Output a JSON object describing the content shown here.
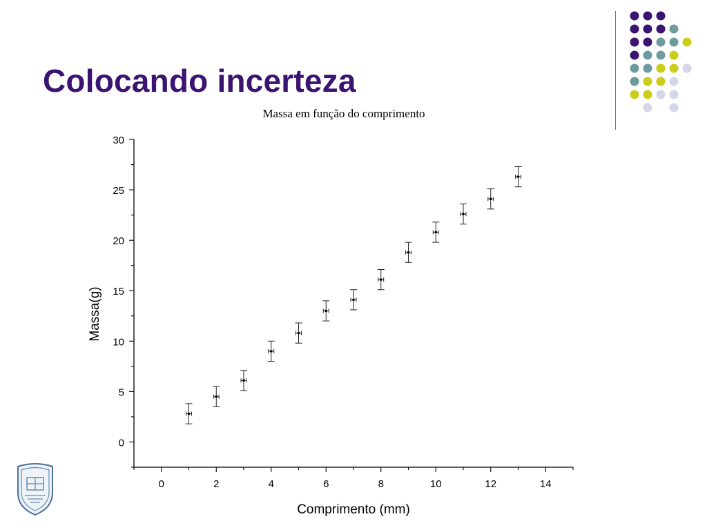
{
  "slide": {
    "title": "Colocando incerteza"
  },
  "theme": {
    "title_color": "#3a1470",
    "dot_colors": {
      "purple": "#3a1470",
      "teal": "#6e9c9c",
      "yellow": "#cccc1a",
      "lavender": "#d6d6ea"
    }
  },
  "decoration": {
    "dot_grid": [
      [
        "purple",
        "purple",
        "purple",
        null,
        null
      ],
      [
        "purple",
        "purple",
        "purple",
        "teal",
        null
      ],
      [
        "purple",
        "purple",
        "teal",
        "teal",
        "yellow"
      ],
      [
        "purple",
        "teal",
        "teal",
        "yellow",
        null
      ],
      [
        "teal",
        "teal",
        "yellow",
        "yellow",
        "lavender"
      ],
      [
        "teal",
        "yellow",
        "yellow",
        "lavender",
        null
      ],
      [
        "yellow",
        "yellow",
        "lavender",
        "lavender",
        null
      ],
      [
        null,
        "lavender",
        null,
        "lavender",
        null
      ]
    ],
    "logo_icon": "university-seal-icon"
  },
  "chart_data": {
    "type": "scatter",
    "title": "Massa em função do comprimento",
    "xlabel": "Comprimento (mm)",
    "ylabel": "Massa(g)",
    "xlim": [
      -1,
      15
    ],
    "ylim": [
      -2.5,
      30
    ],
    "xticks": [
      0,
      2,
      4,
      6,
      8,
      10,
      12,
      14
    ],
    "yticks": [
      0,
      5,
      10,
      15,
      20,
      25,
      30
    ],
    "grid": false,
    "series": [
      {
        "x": [
          1,
          2,
          3,
          4,
          5,
          6,
          7,
          8,
          9,
          10,
          11,
          12,
          13
        ],
        "y": [
          2.8,
          4.5,
          6.1,
          9.0,
          10.8,
          13.0,
          14.1,
          16.1,
          18.8,
          20.8,
          22.6,
          24.1,
          26.3
        ],
        "yerr": 1.0,
        "xerr": 0.1
      }
    ]
  }
}
